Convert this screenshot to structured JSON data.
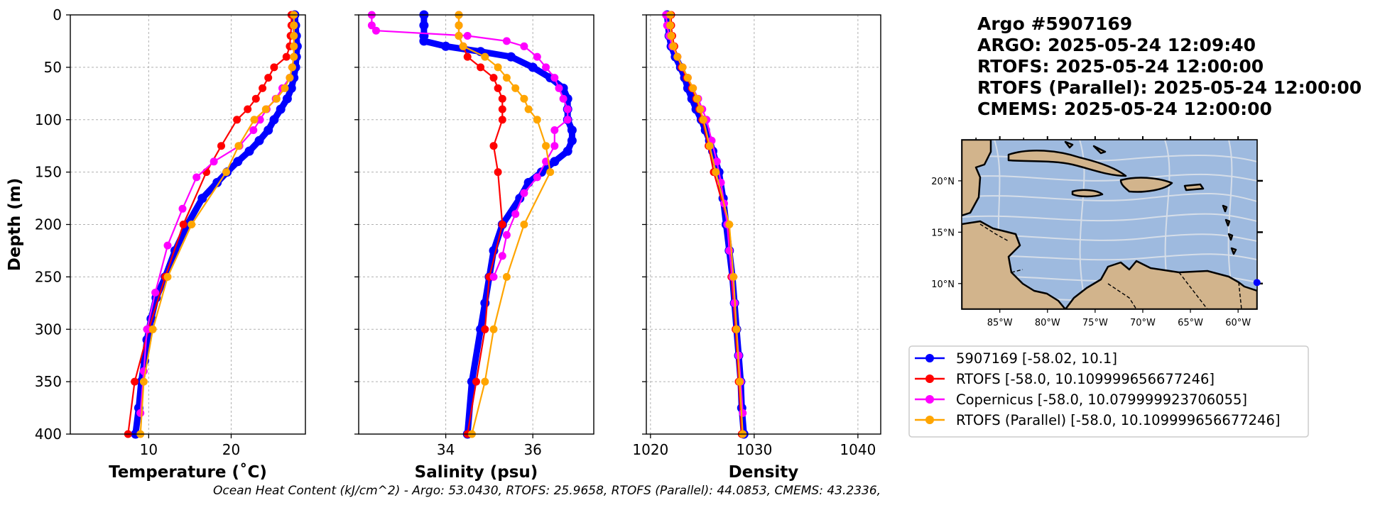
{
  "title": {
    "argo_id": "Argo #5907169",
    "argo_time": "ARGO:  2025-05-24 12:09:40",
    "rtofs_time": "RTOFS: 2025-05-24 12:00:00",
    "rtofs_parallel_time": "RTOFS (Parallel): 2025-05-24 12:00:00",
    "cmems_time": "CMEMS: 2025-05-24 12:00:00"
  },
  "footer": "Ocean Heat Content (kJ/cm^2) - Argo: 53.0430,  RTOFS: 25.9658,  RTOFS (Parallel): 44.0853,  CMEMS: 43.2336,",
  "colors": {
    "argo": "#0000ff",
    "rtofs": "#ff0000",
    "copernicus": "#ff00ff",
    "rtofs_parallel": "#ffa500",
    "ocean": "#9ebadf",
    "land": "#d2b48c",
    "grid": "#b0b0b0"
  },
  "legend": [
    {
      "label": "5907169 [-58.02, 10.1]",
      "color": "#0000ff"
    },
    {
      "label": "RTOFS [-58.0, 10.109999656677246]",
      "color": "#ff0000"
    },
    {
      "label": "Copernicus [-58.0, 10.079999923706055]",
      "color": "#ff00ff"
    },
    {
      "label": "RTOFS (Parallel) [-58.0, 10.109999656677246]",
      "color": "#ffa500"
    }
  ],
  "map": {
    "lon_ticks": [
      "85°W",
      "80°W",
      "75°W",
      "70°W",
      "65°W",
      "60°W"
    ],
    "lat_ticks": [
      "20°N",
      "15°N",
      "10°N"
    ],
    "lon_range": [
      -89,
      -58
    ],
    "lat_range": [
      7.5,
      24
    ],
    "marker_lon": -58.02,
    "marker_lat": 10.1
  },
  "chart_data": [
    {
      "type": "line",
      "xlabel": "Temperature (˚C)",
      "ylabel": "Depth (m)",
      "xlim": [
        0.5,
        29
      ],
      "ylim": [
        400,
        0
      ],
      "xticks": [
        10,
        20
      ],
      "yticks": [
        0,
        50,
        100,
        150,
        200,
        250,
        300,
        350,
        400
      ],
      "grid": true,
      "series": [
        {
          "name": "5907169 [-58.02, 10.1]",
          "key": "argo",
          "depth": [
            0,
            10,
            20,
            30,
            40,
            50,
            60,
            70,
            80,
            90,
            100,
            110,
            120,
            130,
            140,
            150,
            160,
            175,
            200,
            225,
            250,
            270,
            290,
            310,
            330,
            350,
            375,
            400
          ],
          "values": [
            27.7,
            27.8,
            27.9,
            28.0,
            27.9,
            27.8,
            27.6,
            27.3,
            26.8,
            26.0,
            25.2,
            24.5,
            23.4,
            22.2,
            20.8,
            19.5,
            18.3,
            16.5,
            14.7,
            13.2,
            12.0,
            10.9,
            10.3,
            9.8,
            9.5,
            9.1,
            8.8,
            8.4
          ]
        },
        {
          "name": "RTOFS [-58.0, 10.109999656677246]",
          "key": "rtofs",
          "depth": [
            0,
            10,
            20,
            30,
            40,
            50,
            60,
            70,
            80,
            90,
            100,
            125,
            150,
            200,
            250,
            300,
            350,
            400
          ],
          "values": [
            27.3,
            27.3,
            27.2,
            27.1,
            26.7,
            25.2,
            24.5,
            23.8,
            23.0,
            22.0,
            20.7,
            18.8,
            17.0,
            14.2,
            12.0,
            10.0,
            8.3,
            7.5
          ]
        },
        {
          "name": "Copernicus [-58.0, 10.079999923706055]",
          "key": "copernicus",
          "depth": [
            0,
            10,
            20,
            30,
            40,
            50,
            60,
            70,
            80,
            90,
            100,
            110,
            125,
            140,
            155,
            185,
            220,
            265,
            300,
            340,
            380
          ],
          "values": [
            27.6,
            27.6,
            27.6,
            27.6,
            27.6,
            27.4,
            27.1,
            26.2,
            25.4,
            24.3,
            23.5,
            22.7,
            21.0,
            17.9,
            15.8,
            14.1,
            12.3,
            10.8,
            9.8,
            9.4,
            9.0
          ]
        },
        {
          "name": "RTOFS (Parallel) [-58.0, 10.109999656677246]",
          "key": "rtofs_parallel",
          "depth": [
            0,
            10,
            20,
            30,
            40,
            50,
            60,
            70,
            80,
            90,
            100,
            125,
            150,
            200,
            250,
            300,
            350,
            400
          ],
          "values": [
            27.6,
            27.6,
            27.6,
            27.6,
            27.6,
            27.4,
            27.1,
            26.5,
            25.5,
            24.2,
            22.8,
            20.9,
            19.4,
            15.2,
            12.3,
            10.5,
            9.4,
            9.0
          ]
        }
      ]
    },
    {
      "type": "line",
      "xlabel": "Salinity (psu)",
      "xlim": [
        32.0,
        37.4
      ],
      "ylim": [
        400,
        0
      ],
      "xticks": [
        34,
        36
      ],
      "yticks": [
        0,
        50,
        100,
        150,
        200,
        250,
        300,
        350,
        400
      ],
      "grid": true,
      "series": [
        {
          "name": "5907169 [-58.02, 10.1]",
          "key": "argo",
          "depth": [
            0,
            10,
            20,
            25,
            30,
            35,
            40,
            50,
            60,
            70,
            80,
            90,
            100,
            110,
            120,
            130,
            140,
            150,
            160,
            175,
            200,
            225,
            250,
            275,
            300,
            350,
            400
          ],
          "values": [
            33.5,
            33.5,
            33.5,
            33.5,
            34.0,
            34.8,
            35.5,
            36.0,
            36.4,
            36.7,
            36.8,
            36.8,
            36.8,
            36.9,
            36.9,
            36.8,
            36.5,
            36.2,
            35.9,
            35.7,
            35.3,
            35.1,
            35.0,
            34.9,
            34.8,
            34.6,
            34.5
          ]
        },
        {
          "name": "RTOFS [-58.0, 10.109999656677246]",
          "key": "rtofs",
          "depth": [
            0,
            10,
            20,
            30,
            40,
            50,
            60,
            70,
            80,
            90,
            100,
            125,
            150,
            200,
            250,
            300,
            350,
            400
          ],
          "values": [
            34.3,
            34.3,
            34.3,
            34.4,
            34.5,
            34.8,
            35.1,
            35.2,
            35.3,
            35.3,
            35.3,
            35.1,
            35.2,
            35.3,
            35.0,
            34.9,
            34.7,
            34.5
          ]
        },
        {
          "name": "Copernicus [-58.0, 10.079999923706055]",
          "key": "copernicus",
          "depth": [
            0,
            10,
            15,
            20,
            25,
            30,
            40,
            50,
            60,
            70,
            80,
            90,
            100,
            110,
            125,
            140,
            155,
            170,
            190,
            210,
            230,
            250
          ],
          "values": [
            32.3,
            32.3,
            32.4,
            34.5,
            35.4,
            35.8,
            36.1,
            36.3,
            36.5,
            36.6,
            36.7,
            36.8,
            36.8,
            36.5,
            36.5,
            36.3,
            36.1,
            35.8,
            35.6,
            35.4,
            35.3,
            35.1
          ]
        },
        {
          "name": "RTOFS (Parallel) [-58.0, 10.109999656677246]",
          "key": "rtofs_parallel",
          "depth": [
            0,
            10,
            20,
            30,
            40,
            50,
            60,
            70,
            80,
            90,
            100,
            125,
            150,
            200,
            250,
            300,
            350,
            400
          ],
          "values": [
            34.3,
            34.3,
            34.3,
            34.4,
            34.9,
            35.2,
            35.4,
            35.6,
            35.8,
            35.9,
            36.1,
            36.3,
            36.4,
            35.8,
            35.4,
            35.1,
            34.9,
            34.6
          ]
        }
      ]
    },
    {
      "type": "line",
      "xlabel": "Density",
      "xlim": [
        1019.6,
        1042.2
      ],
      "ylim": [
        400,
        0
      ],
      "xticks": [
        1020,
        1030,
        1040
      ],
      "yticks": [
        0,
        50,
        100,
        150,
        200,
        250,
        300,
        350,
        400
      ],
      "grid": true,
      "series": [
        {
          "name": "5907169 [-58.02, 10.1]",
          "key": "argo",
          "depth": [
            0,
            10,
            20,
            30,
            40,
            50,
            60,
            70,
            80,
            90,
            100,
            110,
            120,
            130,
            140,
            150,
            175,
            200,
            225,
            250,
            275,
            300,
            325,
            350,
            375,
            400
          ],
          "values": [
            1021.6,
            1021.7,
            1021.8,
            1022.0,
            1022.4,
            1022.9,
            1023.3,
            1023.6,
            1024.0,
            1024.4,
            1024.9,
            1025.3,
            1025.7,
            1026.0,
            1026.3,
            1026.6,
            1027.0,
            1027.3,
            1027.6,
            1027.9,
            1028.1,
            1028.3,
            1028.5,
            1028.7,
            1028.8,
            1029.0
          ]
        },
        {
          "name": "RTOFS [-58.0, 10.109999656677246]",
          "key": "rtofs",
          "depth": [
            0,
            10,
            20,
            30,
            40,
            50,
            60,
            70,
            80,
            90,
            100,
            125,
            150,
            200,
            250,
            300,
            350,
            400
          ],
          "values": [
            1022.0,
            1022.0,
            1022.1,
            1022.3,
            1022.6,
            1023.0,
            1023.5,
            1024.0,
            1024.4,
            1024.7,
            1025.0,
            1025.6,
            1026.1,
            1027.5,
            1027.8,
            1028.2,
            1028.5,
            1028.8
          ]
        },
        {
          "name": "Copernicus [-58.0, 10.079999923706055]",
          "key": "copernicus",
          "depth": [
            0,
            10,
            20,
            30,
            40,
            50,
            60,
            70,
            80,
            90,
            100,
            120,
            140,
            160,
            180,
            200,
            225,
            250,
            275,
            300,
            325,
            350,
            380
          ],
          "values": [
            1021.5,
            1021.6,
            1021.8,
            1022.1,
            1022.6,
            1023.1,
            1023.6,
            1024.1,
            1024.6,
            1025.0,
            1025.4,
            1025.9,
            1026.4,
            1026.8,
            1027.1,
            1027.4,
            1027.6,
            1027.9,
            1028.1,
            1028.3,
            1028.5,
            1028.7,
            1028.9
          ]
        },
        {
          "name": "RTOFS (Parallel) [-58.0, 10.109999656677246]",
          "key": "rtofs_parallel",
          "depth": [
            0,
            10,
            20,
            30,
            40,
            50,
            60,
            70,
            80,
            90,
            100,
            125,
            150,
            200,
            250,
            300,
            350,
            400
          ],
          "values": [
            1021.9,
            1021.9,
            1022.0,
            1022.2,
            1022.6,
            1023.1,
            1023.6,
            1024.1,
            1024.5,
            1024.8,
            1025.1,
            1025.7,
            1026.3,
            1027.6,
            1028.0,
            1028.3,
            1028.6,
            1028.9
          ]
        }
      ]
    }
  ]
}
